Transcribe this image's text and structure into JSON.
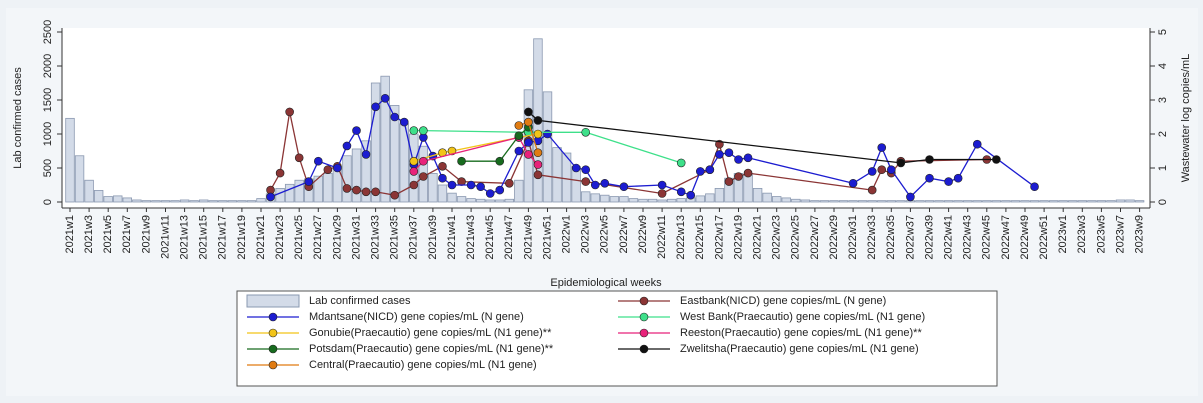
{
  "chart_data": {
    "type": "bar",
    "x_label": "Epidemiological weeks",
    "y_label": "Lab confirmed cases",
    "y2_label": "Wastewater log copies/mL",
    "ylim": [
      0,
      2500
    ],
    "yticks": [
      0,
      500,
      1000,
      1500,
      2000,
      2500
    ],
    "y2lim": [
      0,
      5
    ],
    "y2ticks": [
      0,
      1,
      2,
      3,
      4,
      5
    ],
    "categories": [
      "2021w1",
      null,
      "2021w3",
      null,
      "2021w5",
      null,
      "2021w7",
      null,
      "2021w9",
      null,
      "2021w11",
      null,
      "2021w13",
      null,
      "2021w15",
      null,
      "2021w17",
      null,
      "2021w19",
      null,
      "2021w21",
      null,
      "2021w23",
      null,
      "2021w25",
      null,
      "2021w27",
      null,
      "2021w29",
      null,
      "2021w31",
      null,
      "2021w33",
      null,
      "2021w35",
      null,
      "2021w37",
      null,
      "2021w39",
      null,
      "2021w41",
      null,
      "2021w43",
      null,
      "2021w45",
      null,
      "2021w47",
      null,
      "2021w49",
      null,
      "2021w51",
      null,
      "2022w1",
      null,
      "2022w3",
      null,
      "2022w5",
      null,
      "2022w7",
      null,
      "2022w9",
      null,
      "2022w11",
      null,
      "2022w13",
      null,
      "2022w15",
      null,
      "2022w17",
      null,
      "2022w19",
      null,
      "2022w21",
      null,
      "2022w23",
      null,
      "2022w25",
      null,
      "2022w27",
      null,
      "2022w29",
      null,
      "2022w31",
      null,
      "2022w33",
      null,
      "2022w35",
      null,
      "2022w37",
      null,
      "2022w39",
      null,
      "2022w41",
      null,
      "2022w43",
      null,
      "2022w45",
      null,
      "2022w47",
      null,
      "2022w49",
      null,
      "2022w51",
      null,
      "2023w1",
      null,
      "2023w3",
      null,
      "2023w5",
      null,
      "2023w7",
      null,
      "2023w9"
    ],
    "series": [
      {
        "name": "Lab confirmed cases",
        "type": "bar",
        "color": "#d3dbe8",
        "values": [
          1230,
          680,
          320,
          170,
          80,
          90,
          60,
          30,
          20,
          20,
          20,
          20,
          30,
          20,
          30,
          20,
          20,
          20,
          20,
          20,
          50,
          120,
          200,
          260,
          320,
          340,
          380,
          420,
          520,
          680,
          780,
          900,
          1750,
          1850,
          1420,
          1150,
          1000,
          820,
          420,
          250,
          130,
          80,
          50,
          40,
          30,
          30,
          40,
          320,
          1650,
          2400,
          1620,
          800,
          720,
          520,
          150,
          120,
          100,
          80,
          80,
          50,
          40,
          40,
          30,
          40,
          50,
          60,
          90,
          120,
          200,
          350,
          420,
          400,
          200,
          130,
          80,
          60,
          40,
          30,
          20,
          20,
          20,
          20,
          20,
          20,
          20,
          20,
          20,
          20,
          20,
          20,
          20,
          20,
          20,
          20,
          20,
          20,
          20,
          20,
          20,
          20,
          20,
          20,
          20,
          20,
          20,
          20,
          20,
          20,
          20,
          20,
          30,
          30,
          20
        ]
      },
      {
        "name": "Eastbank(NICD) gene copies/mL (N gene)",
        "type": "line",
        "axis": "y2",
        "color": "#8b3535",
        "values": [
          null,
          null,
          null,
          null,
          null,
          null,
          null,
          null,
          null,
          null,
          null,
          null,
          null,
          null,
          null,
          null,
          null,
          null,
          null,
          null,
          null,
          0.35,
          0.85,
          2.65,
          1.3,
          0.45,
          null,
          0.95,
          1.05,
          0.4,
          0.35,
          0.3,
          0.3,
          null,
          0.2,
          null,
          0.5,
          0.75,
          null,
          1.05,
          null,
          0.6,
          null,
          null,
          null,
          null,
          0.55,
          null,
          1.8,
          0.8,
          null,
          null,
          null,
          null,
          0.6,
          null,
          null,
          null,
          null,
          null,
          null,
          null,
          0.25,
          null,
          null,
          null,
          null,
          0.95,
          1.7,
          0.6,
          0.75,
          0.85,
          null,
          null,
          null,
          null,
          null,
          null,
          null,
          null,
          null,
          null,
          null,
          null,
          0.35,
          0.95,
          0.85,
          1.2,
          null,
          null,
          null,
          null,
          null,
          null,
          null,
          null,
          1.25,
          null,
          null,
          null,
          null,
          null,
          null,
          null,
          null,
          null,
          null,
          null,
          null,
          null,
          null,
          null,
          null
        ]
      },
      {
        "name": "Mdantsane(NICD) gene copies/mL (N gene)",
        "type": "line",
        "axis": "y2",
        "color": "#1c1cd0",
        "values": [
          null,
          null,
          null,
          null,
          null,
          null,
          null,
          null,
          null,
          null,
          null,
          null,
          null,
          null,
          null,
          null,
          null,
          null,
          null,
          null,
          null,
          0.15,
          null,
          null,
          null,
          0.6,
          1.2,
          null,
          1.0,
          1.65,
          2.1,
          1.4,
          2.8,
          3.05,
          2.5,
          2.35,
          1.1,
          1.9,
          1.35,
          0.7,
          0.5,
          null,
          0.5,
          0.45,
          0.25,
          0.35,
          null,
          1.5,
          1.75,
          1.8,
          2.0,
          null,
          null,
          1.0,
          0.95,
          0.5,
          0.55,
          null,
          0.45,
          null,
          null,
          null,
          0.5,
          null,
          0.3,
          0.2,
          0.9,
          0.95,
          1.4,
          1.45,
          1.25,
          1.3,
          null,
          null,
          null,
          null,
          null,
          null,
          null,
          null,
          null,
          null,
          0.55,
          null,
          0.9,
          1.6,
          0.95,
          null,
          0.15,
          null,
          0.7,
          null,
          0.6,
          0.7,
          null,
          1.7,
          null,
          null,
          null,
          null,
          null,
          0.45,
          null,
          null,
          null,
          null,
          null,
          null,
          null,
          null,
          null,
          null,
          null
        ]
      },
      {
        "name": "West Bank(Praecautio) gene copies/mL (N1 gene)",
        "type": "line",
        "axis": "y2",
        "color": "#3ee08a",
        "values": [
          null,
          null,
          null,
          null,
          null,
          null,
          null,
          null,
          null,
          null,
          null,
          null,
          null,
          null,
          null,
          null,
          null,
          null,
          null,
          null,
          null,
          null,
          null,
          null,
          null,
          null,
          null,
          null,
          null,
          null,
          null,
          null,
          null,
          null,
          null,
          null,
          2.1,
          2.1,
          null,
          null,
          null,
          null,
          null,
          null,
          null,
          null,
          null,
          null,
          2.05,
          null,
          null,
          null,
          null,
          null,
          2.05,
          null,
          null,
          null,
          null,
          null,
          null,
          null,
          null,
          null,
          1.15,
          null,
          null,
          null,
          null,
          null,
          null,
          null,
          null,
          null,
          null,
          null,
          null,
          null,
          null,
          null,
          null,
          null,
          null,
          null,
          null,
          null,
          null,
          null,
          null,
          null,
          null,
          null,
          null,
          null,
          null,
          null,
          null,
          null,
          null,
          null,
          null,
          null,
          null,
          null,
          null,
          null,
          null,
          null,
          null,
          null,
          null,
          null,
          null
        ]
      },
      {
        "name": "Gonubie(Praecautio) gene copies/mL (N1 gene)**",
        "type": "line",
        "axis": "y2",
        "color": "#f2c418",
        "values": [
          null,
          null,
          null,
          null,
          null,
          null,
          null,
          null,
          null,
          null,
          null,
          null,
          null,
          null,
          null,
          null,
          null,
          null,
          null,
          null,
          null,
          null,
          null,
          null,
          null,
          null,
          null,
          null,
          null,
          null,
          null,
          null,
          null,
          null,
          null,
          null,
          1.2,
          null,
          null,
          1.45,
          1.5,
          null,
          null,
          null,
          null,
          null,
          null,
          1.9,
          null,
          2.0,
          null,
          null,
          null,
          null,
          null,
          null,
          null,
          null,
          null,
          null,
          null,
          null,
          null,
          null,
          null,
          null,
          null,
          null,
          null,
          null,
          null,
          null,
          null,
          null,
          null,
          null,
          null,
          null,
          null,
          null,
          null,
          null,
          null,
          null,
          null,
          null,
          null,
          null,
          null,
          null,
          null,
          null,
          null,
          null,
          null,
          null,
          null,
          null,
          null,
          null,
          null,
          null,
          null,
          null,
          null,
          null,
          null,
          null,
          null,
          null,
          null,
          null,
          null
        ]
      },
      {
        "name": "Reeston(Praecautio) gene copies/mL (N1 gene)**",
        "type": "line",
        "axis": "y2",
        "color": "#e8227a",
        "values": [
          null,
          null,
          null,
          null,
          null,
          null,
          null,
          null,
          null,
          null,
          null,
          null,
          null,
          null,
          null,
          null,
          null,
          null,
          null,
          null,
          null,
          null,
          null,
          null,
          null,
          null,
          null,
          null,
          null,
          null,
          null,
          null,
          null,
          null,
          null,
          null,
          0.9,
          1.2,
          null,
          null,
          null,
          null,
          null,
          null,
          null,
          null,
          null,
          1.9,
          1.4,
          1.1,
          null,
          null,
          null,
          null,
          null,
          null,
          null,
          null,
          null,
          null,
          null,
          null,
          null,
          null,
          null,
          null,
          null,
          null,
          null,
          null,
          null,
          null,
          null,
          null,
          null,
          null,
          null,
          null,
          null,
          null,
          null,
          null,
          null,
          null,
          null,
          null,
          null,
          null,
          null,
          null,
          null,
          null,
          null,
          null,
          null,
          null,
          null,
          null,
          null,
          null,
          null,
          null,
          null,
          null,
          null,
          null,
          null,
          null,
          null,
          null,
          null,
          null,
          null
        ]
      },
      {
        "name": "Potsdam(Praecautio) gene copies/mL (N1 gene)**",
        "type": "line",
        "axis": "y2",
        "color": "#176b1e",
        "values": [
          null,
          null,
          null,
          null,
          null,
          null,
          null,
          null,
          null,
          null,
          null,
          null,
          null,
          null,
          null,
          null,
          null,
          null,
          null,
          null,
          null,
          null,
          null,
          null,
          null,
          null,
          null,
          null,
          null,
          null,
          null,
          null,
          null,
          null,
          null,
          null,
          null,
          null,
          null,
          null,
          null,
          1.2,
          null,
          null,
          null,
          1.2,
          null,
          1.95,
          2.2,
          null,
          null,
          null,
          null,
          null,
          null,
          null,
          null,
          null,
          null,
          null,
          null,
          null,
          null,
          null,
          null,
          null,
          null,
          null,
          null,
          null,
          null,
          null,
          null,
          null,
          null,
          null,
          null,
          null,
          null,
          null,
          null,
          null,
          null,
          null,
          null,
          null,
          null,
          null,
          null,
          null,
          null,
          null,
          null,
          null,
          null,
          null,
          null,
          null,
          null,
          null,
          null,
          null,
          null,
          null,
          null,
          null,
          null,
          null,
          null,
          null,
          null,
          null,
          null
        ]
      },
      {
        "name": "Zwelitsha(Praecautio) gene copies/mL (N1 gene)",
        "type": "line",
        "axis": "y2",
        "color": "#111111",
        "values": [
          null,
          null,
          null,
          null,
          null,
          null,
          null,
          null,
          null,
          null,
          null,
          null,
          null,
          null,
          null,
          null,
          null,
          null,
          null,
          null,
          null,
          null,
          null,
          null,
          null,
          null,
          null,
          null,
          null,
          null,
          null,
          null,
          null,
          null,
          null,
          null,
          null,
          null,
          null,
          null,
          null,
          null,
          null,
          null,
          null,
          null,
          null,
          null,
          2.65,
          2.4,
          null,
          null,
          null,
          null,
          null,
          null,
          null,
          null,
          null,
          null,
          null,
          null,
          null,
          null,
          null,
          null,
          null,
          null,
          null,
          null,
          null,
          null,
          null,
          null,
          null,
          null,
          null,
          null,
          null,
          null,
          null,
          null,
          null,
          null,
          null,
          null,
          null,
          1.15,
          null,
          null,
          1.25,
          null,
          null,
          null,
          null,
          null,
          null,
          1.25,
          null,
          null,
          null,
          null,
          null,
          null,
          null,
          null,
          null,
          null,
          null,
          null,
          null,
          null,
          null
        ]
      },
      {
        "name": "Central(Praecautio) gene copies/mL (N1 gene)",
        "type": "line",
        "axis": "y2",
        "color": "#e07b12",
        "values": [
          null,
          null,
          null,
          null,
          null,
          null,
          null,
          null,
          null,
          null,
          null,
          null,
          null,
          null,
          null,
          null,
          null,
          null,
          null,
          null,
          null,
          null,
          null,
          null,
          null,
          null,
          null,
          null,
          null,
          null,
          null,
          null,
          null,
          null,
          null,
          null,
          null,
          null,
          null,
          null,
          null,
          null,
          null,
          null,
          null,
          null,
          null,
          2.25,
          2.35,
          1.45,
          null,
          null,
          null,
          null,
          null,
          null,
          null,
          null,
          null,
          null,
          null,
          null,
          null,
          null,
          null,
          null,
          null,
          null,
          null,
          null,
          null,
          null,
          null,
          null,
          null,
          null,
          null,
          null,
          null,
          null,
          null,
          null,
          null,
          null,
          null,
          null,
          null,
          null,
          null,
          null,
          null,
          null,
          null,
          null,
          null,
          null,
          null,
          null,
          null,
          null,
          null,
          null,
          null,
          null,
          null,
          null,
          null,
          null,
          null,
          null,
          null,
          null,
          null
        ]
      }
    ]
  }
}
